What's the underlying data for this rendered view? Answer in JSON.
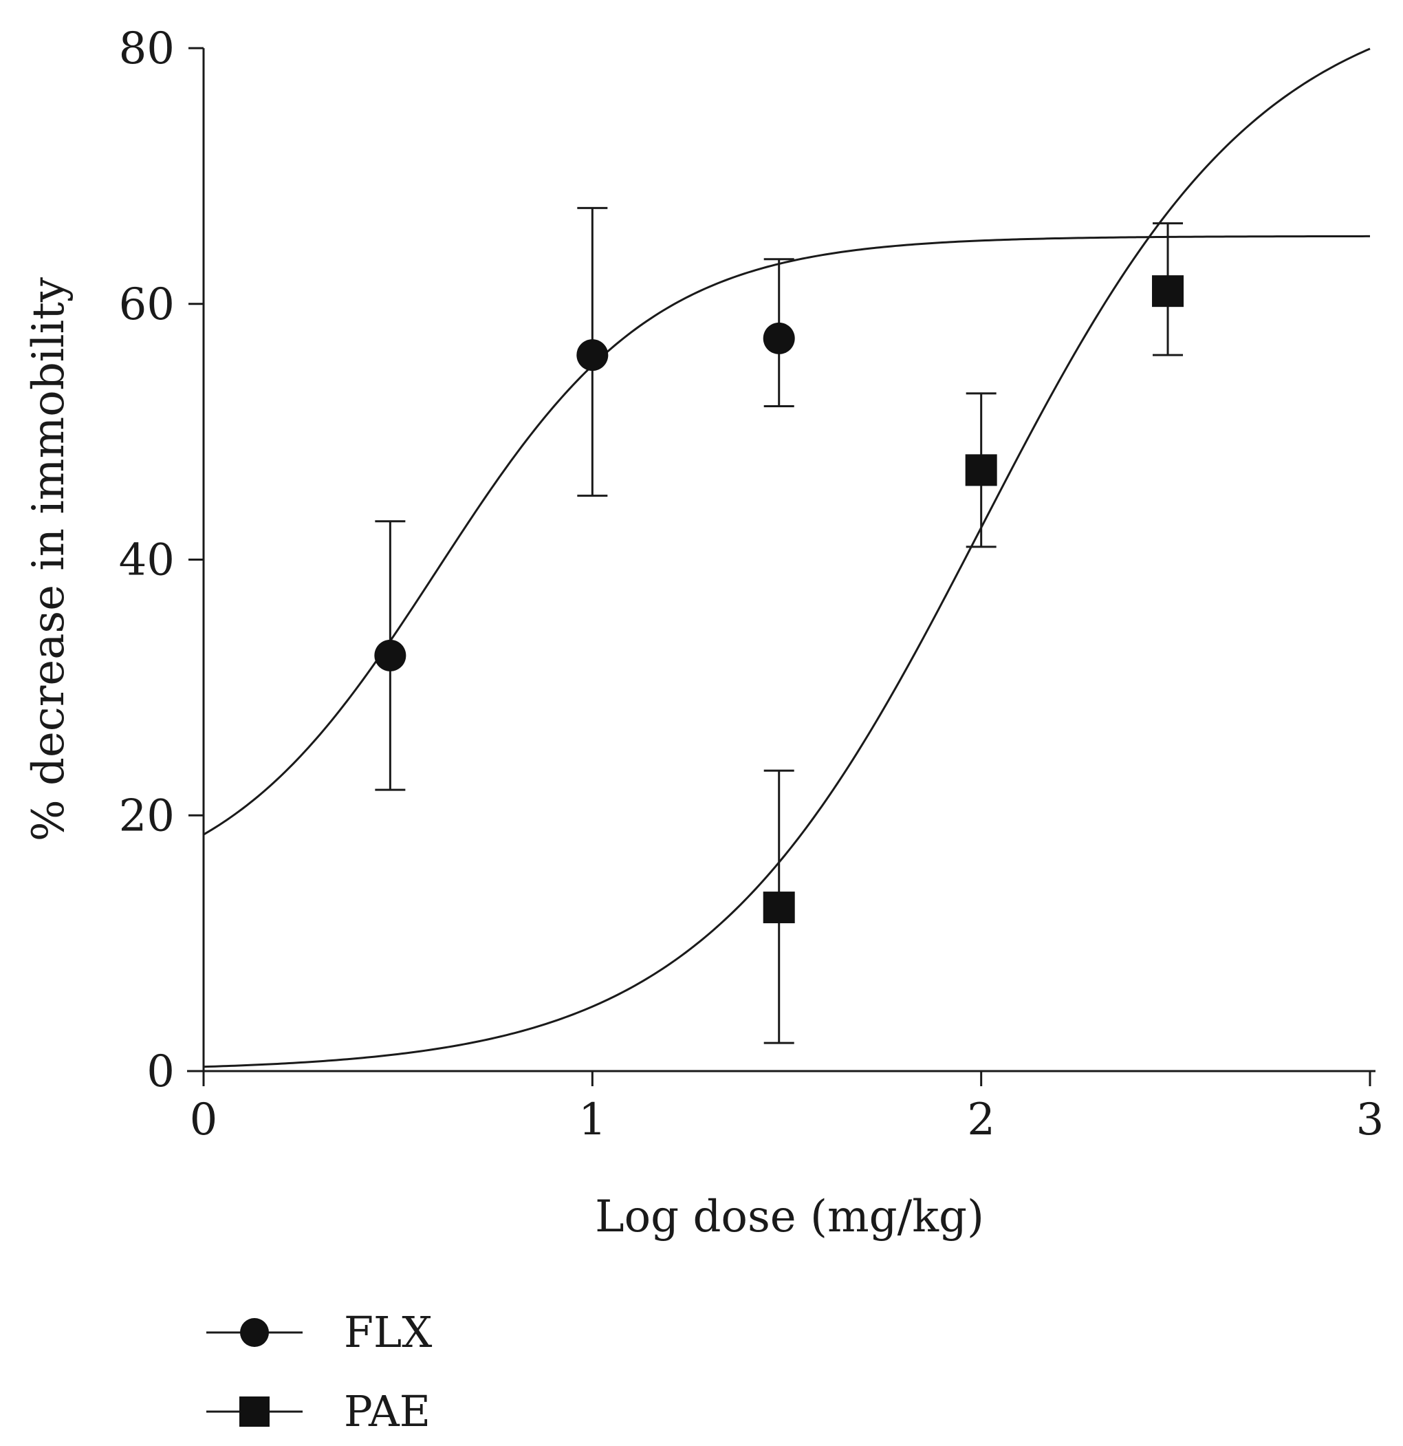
{
  "chart_data": {
    "type": "scatter",
    "title": "",
    "xlabel": "Log dose (mg/kg)",
    "ylabel": "% decrease in immobility",
    "xlim": [
      0,
      3
    ],
    "ylim": [
      0,
      80
    ],
    "x_ticks": [
      "0",
      "1",
      "2",
      "3"
    ],
    "y_ticks": [
      "0",
      "20",
      "40",
      "60",
      "80"
    ],
    "grid": false,
    "legend_position": "bottom-left",
    "series": [
      {
        "name": "FLX",
        "marker": "circle",
        "x": [
          0.48,
          1.0,
          1.48
        ],
        "y": [
          32.5,
          56.0,
          57.3
        ],
        "error_low": [
          22.0,
          45.0,
          52.0
        ],
        "error_high": [
          43.0,
          67.5,
          63.5
        ],
        "fit": {
          "model": "sigmoid",
          "bottom": 13.0,
          "top": 65.3,
          "ec50": 0.6,
          "slope": 1.55
        }
      },
      {
        "name": "PAE",
        "marker": "square",
        "x": [
          1.48,
          2.0,
          2.48
        ],
        "y": [
          12.8,
          47.0,
          61.0
        ],
        "error_low": [
          2.2,
          41.0,
          56.0
        ],
        "error_high": [
          23.5,
          53.0,
          66.3
        ],
        "fit": {
          "model": "sigmoid",
          "bottom": 0.0,
          "top": 85.0,
          "ec50": 2.0,
          "slope": 1.2
        }
      }
    ]
  }
}
